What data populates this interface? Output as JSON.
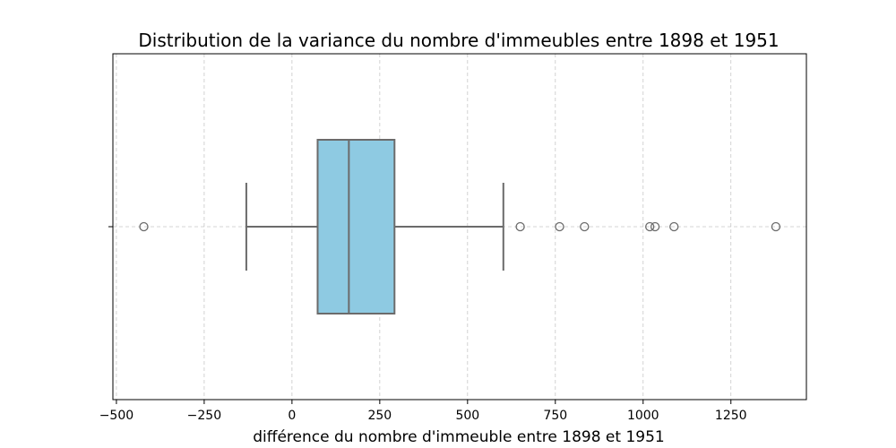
{
  "chart_data": {
    "type": "box",
    "title": "Distribution de la variance du nombre d'immeubles entre 1898 et 1951",
    "xlabel": "différence du nombre d'immeuble entre 1898 et 1951",
    "ylabel": "",
    "xlim": [
      -510,
      1465
    ],
    "xticks": [
      -500,
      -250,
      0,
      250,
      500,
      750,
      1000,
      1250
    ],
    "xtick_labels": [
      "−500",
      "−250",
      "0",
      "250",
      "500",
      "750",
      "1000",
      "1250"
    ],
    "grid": true,
    "orientation": "horizontal",
    "box": {
      "whisker_low": -130,
      "q1": 73,
      "median": 162,
      "q3": 292,
      "whisker_high": 602,
      "outliers": [
        -422,
        650,
        762,
        833,
        1019,
        1034,
        1088,
        1378
      ]
    },
    "colors": {
      "box_fill": "#8ecae2",
      "box_edge": "#6b6b6b",
      "grid": "#b0b0b0"
    }
  }
}
